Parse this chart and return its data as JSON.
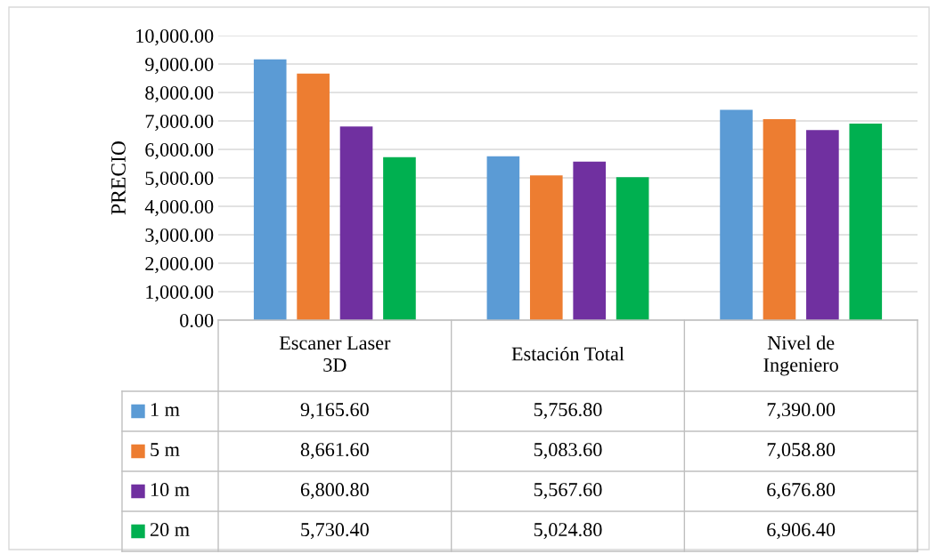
{
  "chart_data": {
    "type": "bar",
    "ylabel": "PRECIO",
    "categories": [
      "Escaner Laser\n3D",
      "Estación Total",
      "Nivel de\nIngeniero"
    ],
    "series": [
      {
        "name": "1 m",
        "color": "#5b9bd5",
        "values": [
          9165.6,
          5756.8,
          7390.0
        ],
        "value_labels": [
          "9,165.60",
          "5,756.80",
          "7,390.00"
        ]
      },
      {
        "name": "5 m",
        "color": "#ed7d31",
        "values": [
          8661.6,
          5083.6,
          7058.8
        ],
        "value_labels": [
          "8,661.60",
          "5,083.60",
          "7,058.80"
        ]
      },
      {
        "name": "10 m",
        "color": "#7030a0",
        "values": [
          6800.8,
          5567.6,
          6676.8
        ],
        "value_labels": [
          "6,800.80",
          "5,567.60",
          "6,676.80"
        ]
      },
      {
        "name": "20 m",
        "color": "#00b050",
        "values": [
          5730.4,
          5024.8,
          6906.4
        ],
        "value_labels": [
          "5,730.40",
          "5,024.80",
          "6,906.40"
        ]
      }
    ],
    "ylim": [
      0,
      10000
    ],
    "yticks": [
      {
        "value": 0,
        "label": "0.00"
      },
      {
        "value": 1000,
        "label": "1,000.00"
      },
      {
        "value": 2000,
        "label": "2,000.00"
      },
      {
        "value": 3000,
        "label": "3,000.00"
      },
      {
        "value": 4000,
        "label": "4,000.00"
      },
      {
        "value": 5000,
        "label": "5,000.00"
      },
      {
        "value": 6000,
        "label": "6,000.00"
      },
      {
        "value": 7000,
        "label": "7,000.00"
      },
      {
        "value": 8000,
        "label": "8,000.00"
      },
      {
        "value": 9000,
        "label": "9,000.00"
      },
      {
        "value": 10000,
        "label": "10,000.00"
      }
    ],
    "grid": "y",
    "legend": "bottom"
  }
}
